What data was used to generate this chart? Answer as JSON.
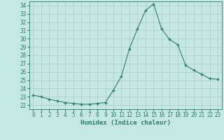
{
  "x": [
    0,
    1,
    2,
    3,
    4,
    5,
    6,
    7,
    8,
    9,
    10,
    11,
    12,
    13,
    14,
    15,
    16,
    17,
    18,
    19,
    20,
    21,
    22,
    23
  ],
  "y": [
    23.2,
    23.0,
    22.7,
    22.5,
    22.3,
    22.2,
    22.1,
    22.1,
    22.2,
    22.3,
    23.8,
    25.5,
    28.8,
    31.2,
    33.4,
    34.2,
    31.2,
    29.9,
    29.3,
    26.8,
    26.2,
    25.7,
    25.2,
    25.1
  ],
  "xlabel": "Humidex (Indice chaleur)",
  "ylim": [
    21.5,
    34.5
  ],
  "yticks": [
    22,
    23,
    24,
    25,
    26,
    27,
    28,
    29,
    30,
    31,
    32,
    33,
    34
  ],
  "xticks": [
    0,
    1,
    2,
    3,
    4,
    5,
    6,
    7,
    8,
    9,
    10,
    11,
    12,
    13,
    14,
    15,
    16,
    17,
    18,
    19,
    20,
    21,
    22,
    23
  ],
  "line_color": "#2e7d6e",
  "marker": "+",
  "marker_size": 3.5,
  "bg_color": "#c5e8e5",
  "grid_color": "#b0d0ce",
  "font_color": "#2e7d6e",
  "xlabel_fontsize": 6.5,
  "tick_fontsize": 5.5
}
